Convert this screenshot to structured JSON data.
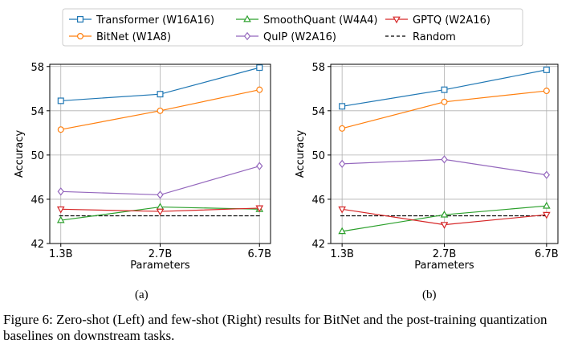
{
  "legend": [
    {
      "label": "Transformer (W16A16)",
      "color": "#1f77b4",
      "marker": "square",
      "dashed": false
    },
    {
      "label": "SmoothQuant (W4A4)",
      "color": "#2ca02c",
      "marker": "triangle-up",
      "dashed": false
    },
    {
      "label": "GPTQ (W2A16)",
      "color": "#d62728",
      "marker": "triangle-down",
      "dashed": false
    },
    {
      "label": "BitNet (W1A8)",
      "color": "#ff7f0e",
      "marker": "circle",
      "dashed": false
    },
    {
      "label": "QuIP (W2A16)",
      "color": "#9467bd",
      "marker": "diamond",
      "dashed": false
    },
    {
      "label": "Random",
      "color": "#000000",
      "marker": "none",
      "dashed": true
    }
  ],
  "chart_data": [
    {
      "type": "line",
      "title": "",
      "xlabel": "Parameters",
      "ylabel": "Accuracy",
      "categories": [
        "1.3B",
        "2.7B",
        "6.7B"
      ],
      "ylim": [
        42,
        58.2
      ],
      "yticks": [
        42,
        46,
        50,
        54,
        58
      ],
      "grid": true,
      "random_baseline": 44.5,
      "series": [
        {
          "name": "Transformer (W16A16)",
          "values": [
            54.9,
            55.5,
            57.9
          ]
        },
        {
          "name": "BitNet (W1A8)",
          "values": [
            52.3,
            54.0,
            55.9
          ]
        },
        {
          "name": "QuIP (W2A16)",
          "values": [
            46.7,
            46.4,
            49.0
          ]
        },
        {
          "name": "SmoothQuant (W4A4)",
          "values": [
            44.1,
            45.3,
            45.1
          ]
        },
        {
          "name": "GPTQ (W2A16)",
          "values": [
            45.1,
            44.9,
            45.2
          ]
        }
      ]
    },
    {
      "type": "line",
      "title": "",
      "xlabel": "Parameters",
      "ylabel": "Accuracy",
      "categories": [
        "1.3B",
        "2.7B",
        "6.7B"
      ],
      "ylim": [
        42,
        58.2
      ],
      "yticks": [
        42,
        46,
        50,
        54,
        58
      ],
      "grid": true,
      "random_baseline": 44.5,
      "series": [
        {
          "name": "Transformer (W16A16)",
          "values": [
            54.4,
            55.9,
            57.7
          ]
        },
        {
          "name": "BitNet (W1A8)",
          "values": [
            52.4,
            54.8,
            55.8
          ]
        },
        {
          "name": "QuIP (W2A16)",
          "values": [
            49.2,
            49.6,
            48.2
          ]
        },
        {
          "name": "SmoothQuant (W4A4)",
          "values": [
            43.1,
            44.6,
            45.4
          ]
        },
        {
          "name": "GPTQ (W2A16)",
          "values": [
            45.1,
            43.7,
            44.6
          ]
        }
      ]
    }
  ],
  "subfigure_labels": [
    "(a)",
    "(b)"
  ],
  "caption": "Figure 6: Zero-shot (Left) and few-shot (Right) results for BitNet and the post-training quantization baselines on downstream tasks."
}
